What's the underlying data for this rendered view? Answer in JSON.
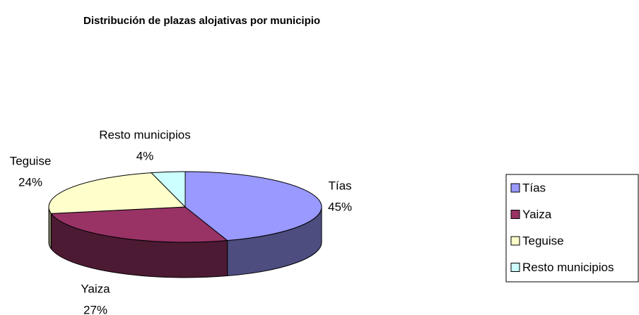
{
  "chart_data": {
    "type": "pie",
    "title": "Distribución de plazas alojativas por municipio",
    "categories": [
      "Tías",
      "Yaiza",
      "Teguise",
      "Resto municipios"
    ],
    "values": [
      45,
      27,
      24,
      4
    ],
    "value_labels": [
      "45%",
      "27%",
      "24%",
      "4%"
    ],
    "colors": [
      "#9999ff",
      "#993366",
      "#ffffcc",
      "#ccffff"
    ],
    "legend": "right"
  }
}
